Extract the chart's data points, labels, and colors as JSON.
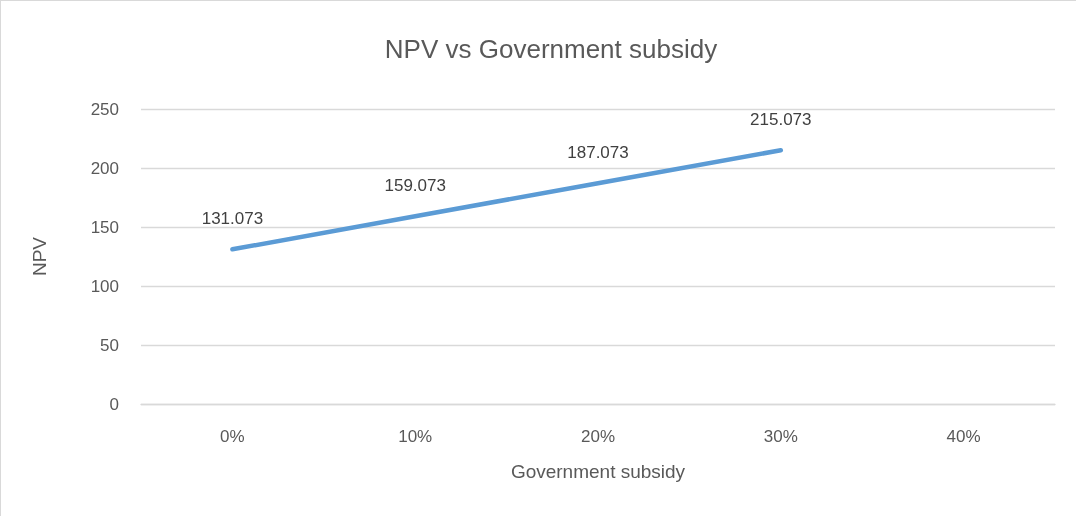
{
  "chart_data": {
    "type": "line",
    "title": "NPV vs Government subsidy",
    "xlabel": "Government subsidy",
    "ylabel": "NPV",
    "categories": [
      "0%",
      "10%",
      "20%",
      "30%",
      "40%"
    ],
    "values": [
      131.073,
      159.073,
      187.073,
      215.073,
      null
    ],
    "color": "#5b9bd5",
    "ylim": [
      0,
      250
    ],
    "yticks": [
      0,
      50,
      100,
      150,
      200,
      250
    ],
    "grid": "y",
    "marker": "none",
    "line_style": "solid",
    "data_labels": true
  }
}
